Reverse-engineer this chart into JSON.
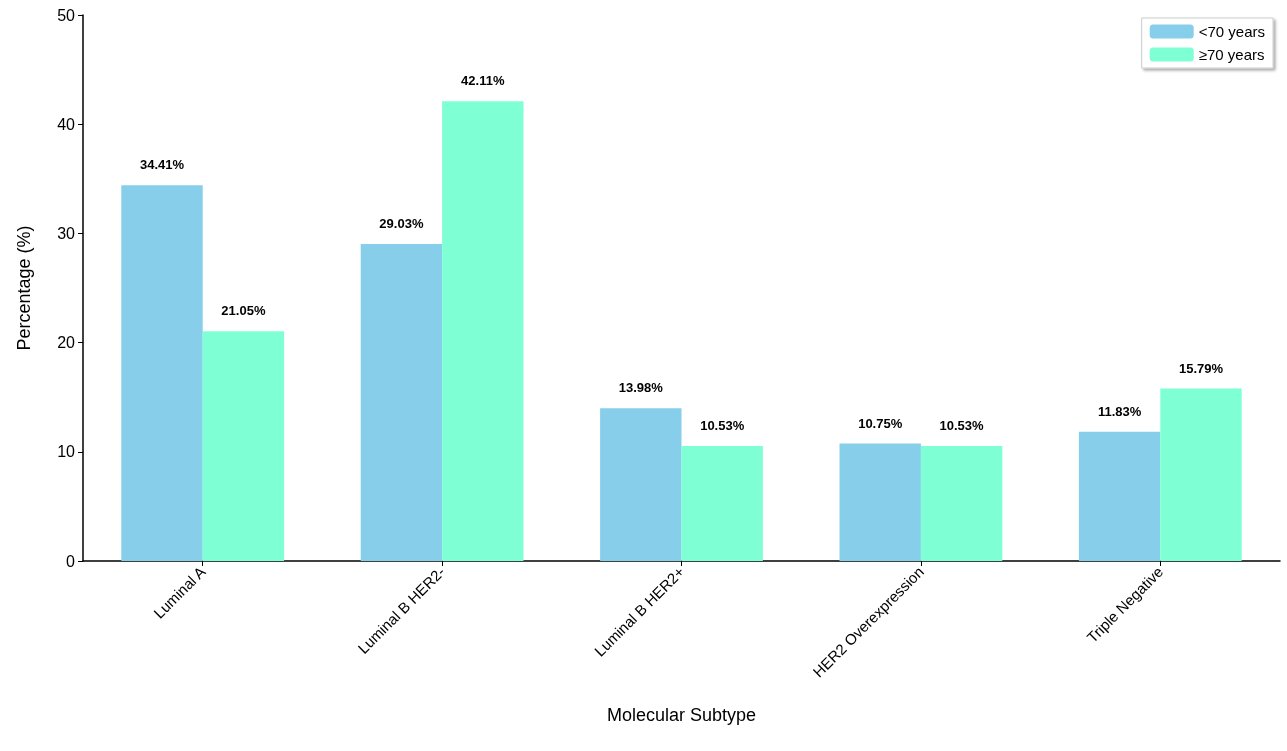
{
  "chart_data": {
    "type": "bar",
    "xlabel": "Molecular Subtype",
    "ylabel": "Percentage (%)",
    "categories": [
      "Luminal A",
      "Luminal B HER2-",
      "Luminal B HER2+",
      "HER2 Overexpression",
      "Triple Negative"
    ],
    "series": [
      {
        "name": "<70 years",
        "color": "#87ceeb",
        "values": [
          34.41,
          29.03,
          13.98,
          10.75,
          11.83
        ],
        "value_labels": [
          "34.41%",
          "29.03%",
          "13.98%",
          "10.75%",
          "11.83%"
        ]
      },
      {
        "name": "≥70 years",
        "color": "#7fffd4",
        "values": [
          21.05,
          42.11,
          10.53,
          10.53,
          15.79
        ],
        "value_labels": [
          "21.05%",
          "42.11%",
          "10.53%",
          "10.53%",
          "15.79%"
        ]
      }
    ],
    "ylim": [
      0,
      50
    ],
    "yticks": [
      0,
      10,
      20,
      30,
      40,
      50
    ],
    "grid": false,
    "legend": "top right"
  }
}
